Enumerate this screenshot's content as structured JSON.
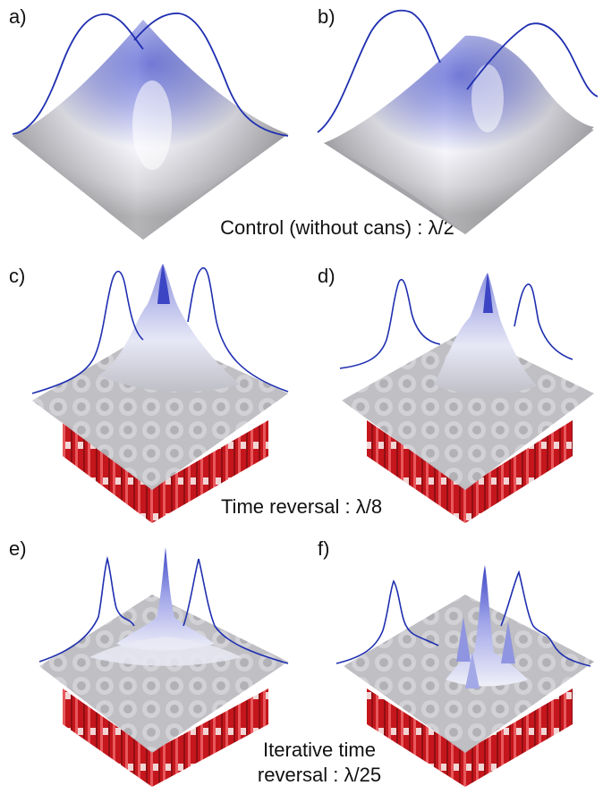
{
  "panels": {
    "a": {
      "label": "a)"
    },
    "b": {
      "label": "b)"
    },
    "c": {
      "label": "c)"
    },
    "d": {
      "label": "d)"
    },
    "e": {
      "label": "e)"
    },
    "f": {
      "label": "f)"
    }
  },
  "captions": {
    "control": "Control (without cans) : λ/2",
    "time_reversal": "Time reversal : λ/8",
    "iterative_line1": "Iterative time",
    "iterative_line2": "reversal : λ/25"
  },
  "colors": {
    "profile_line": "#1f2fb0",
    "peak_blue": "#5a64d8",
    "surface_white": "#f4f4fa",
    "surface_gray": "#9e9e9e",
    "can_red": "#c4161c"
  }
}
